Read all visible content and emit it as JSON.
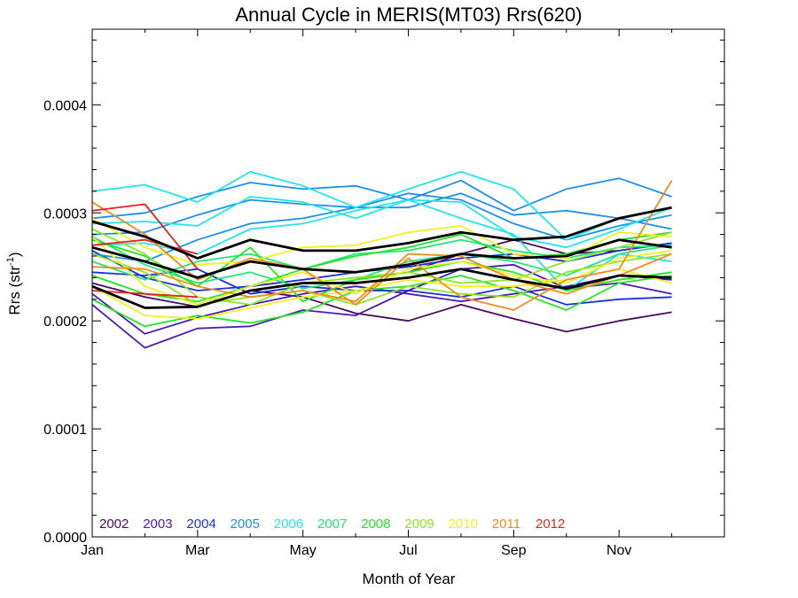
{
  "chart_data": {
    "type": "line",
    "title": "Annual Cycle in MERIS(MT03) Rrs(620)",
    "xlabel": "Month of Year",
    "ylabel": "Rrs (str",
    "ylabel_sup": "-1",
    "ylabel_end": ")",
    "xlim": [
      1,
      13
    ],
    "ylim": [
      0,
      0.00047
    ],
    "x_ticks": [
      1,
      3,
      5,
      7,
      9,
      11
    ],
    "x_tick_labels": [
      "Jan",
      "Mar",
      "May",
      "Jul",
      "Sep",
      "Nov"
    ],
    "y_ticks": [
      0,
      0.0001,
      0.0002,
      0.0003,
      0.0004
    ],
    "y_tick_labels": [
      "0.0000",
      "0.0001",
      "0.0002",
      "0.0003",
      "0.0004"
    ],
    "grid": false,
    "legend_position": "bottom-left",
    "legend": [
      {
        "name": "2002",
        "color": "#4a0a5e"
      },
      {
        "name": "2003",
        "color": "#4b1ab8"
      },
      {
        "name": "2004",
        "color": "#1b2fe6"
      },
      {
        "name": "2005",
        "color": "#1e8ff0"
      },
      {
        "name": "2006",
        "color": "#22e6e6"
      },
      {
        "name": "2007",
        "color": "#22e67a"
      },
      {
        "name": "2008",
        "color": "#22e622"
      },
      {
        "name": "2009",
        "color": "#8ee622"
      },
      {
        "name": "2010",
        "color": "#f0f022"
      },
      {
        "name": "2011",
        "color": "#f08c1a"
      },
      {
        "name": "2012",
        "color": "#e62222"
      }
    ],
    "x": [
      1,
      2,
      3,
      4,
      5,
      6,
      7,
      8,
      9,
      10,
      11,
      12
    ],
    "series": [
      {
        "year": "2002",
        "color": "#4a0a5e",
        "values": [
          0.000235,
          0.000222,
          0.000213,
          0.000228,
          0.000222,
          0.000207,
          0.0002,
          0.000215,
          0.000202,
          0.00019,
          0.0002,
          0.000208
        ]
      },
      {
        "year": "2002",
        "color": "#4a0a5e",
        "values": [
          null,
          null,
          null,
          null,
          null,
          null,
          0.000245,
          0.000262,
          0.000275,
          0.000262,
          0.000265,
          0.000272
        ]
      },
      {
        "year": "2003",
        "color": "#4b1ab8",
        "values": [
          0.000215,
          0.000175,
          0.000193,
          0.000195,
          0.00021,
          0.000205,
          0.000228,
          0.000248,
          0.000252,
          0.00023,
          0.000235,
          0.000225
        ]
      },
      {
        "year": "2003",
        "color": "#4b1ab8",
        "values": [
          0.000225,
          0.000188,
          0.000203,
          0.000215,
          0.000225,
          0.000232,
          0.000225,
          0.000218,
          0.000225,
          0.000232,
          0.000242,
          0.000238
        ]
      },
      {
        "year": "2004",
        "color": "#1b2fe6",
        "values": [
          0.000245,
          0.000242,
          0.000248,
          0.000225,
          0.000232,
          0.000228,
          0.000228,
          0.000222,
          0.000232,
          0.000215,
          0.00022,
          0.000222
        ]
      },
      {
        "year": "2004",
        "color": "#1b2fe6",
        "values": [
          0.000265,
          0.00024,
          0.000228,
          0.000232,
          0.000238,
          0.000245,
          0.00025,
          0.000258,
          0.000262,
          0.000255,
          0.000265,
          0.000272
        ]
      },
      {
        "year": "2005",
        "color": "#1e8ff0",
        "values": [
          0.000295,
          0.0003,
          0.000315,
          0.000328,
          0.000322,
          0.000325,
          0.000312,
          0.00033,
          0.000302,
          0.000322,
          0.000332,
          0.000315
        ]
      },
      {
        "year": "2005",
        "color": "#1e8ff0",
        "values": [
          0.00028,
          0.000282,
          0.000298,
          0.000312,
          0.000308,
          0.000305,
          0.000305,
          0.000318,
          0.000298,
          0.000302,
          0.000295,
          0.000285
        ]
      },
      {
        "year": "2005",
        "color": "#1e8ff0",
        "values": [
          0.000262,
          0.000255,
          0.000275,
          0.00029,
          0.000295,
          0.000305,
          0.000318,
          0.000312,
          0.00029,
          0.000275,
          0.000288,
          0.000298
        ]
      },
      {
        "year": "2006",
        "color": "#22e6e6",
        "values": [
          0.00032,
          0.000326,
          0.00031,
          0.000338,
          0.000325,
          0.000305,
          0.000322,
          0.000338,
          0.000322,
          0.000275,
          0.000295,
          0.000305
        ]
      },
      {
        "year": "2006",
        "color": "#22e6e6",
        "values": [
          0.00029,
          0.000292,
          0.000288,
          0.000315,
          0.00031,
          0.000295,
          0.000312,
          0.00031,
          0.000278,
          0.000268,
          0.000285,
          0.000305
        ]
      },
      {
        "year": "2006",
        "color": "#22e6e6",
        "values": [
          0.00027,
          0.000272,
          0.000262,
          0.000285,
          0.00029,
          0.000302,
          0.000312,
          0.000295,
          0.00028,
          0.000228,
          0.000262,
          0.000255
        ]
      },
      {
        "year": "2007",
        "color": "#22e67a",
        "values": [
          0.000278,
          0.000252,
          0.000235,
          0.000245,
          0.00023,
          0.000238,
          0.000255,
          0.000262,
          0.000255,
          0.000242,
          0.000262,
          0.00027
        ]
      },
      {
        "year": "2007",
        "color": "#22e67a",
        "values": [
          0.000255,
          0.000238,
          0.000255,
          0.000262,
          0.000248,
          0.000262,
          0.000265,
          0.000275,
          0.000265,
          0.000258,
          0.000268,
          0.00027
        ]
      },
      {
        "year": "2008",
        "color": "#22e622",
        "values": [
          0.00022,
          0.000195,
          0.000205,
          0.000198,
          0.000208,
          0.000228,
          0.000232,
          0.000242,
          0.000228,
          0.00021,
          0.000235,
          0.000242
        ]
      },
      {
        "year": "2008",
        "color": "#22e622",
        "values": [
          0.000242,
          0.000225,
          0.000218,
          0.000232,
          0.000248,
          0.00026,
          0.000268,
          0.00028,
          0.000258,
          0.000262,
          0.000275,
          0.000282
        ]
      },
      {
        "year": "2008",
        "color": "#22e622",
        "values": [
          0.000275,
          0.00026,
          0.000232,
          0.000268,
          0.000218,
          0.000238,
          0.000245,
          0.000255,
          0.000245,
          0.000228,
          0.000238,
          0.000245
        ]
      },
      {
        "year": "2009",
        "color": "#8ee622",
        "values": [
          0.000285,
          0.000262,
          0.000222,
          0.000215,
          0.000235,
          0.00024,
          0.000245,
          0.000235,
          0.000238,
          0.000255,
          0.000268,
          0.000282
        ]
      },
      {
        "year": "2009",
        "color": "#8ee622",
        "values": [
          0.000262,
          0.000245,
          0.000215,
          0.000222,
          0.000228,
          0.000215,
          0.000232,
          0.000225,
          0.000222,
          0.000245,
          0.000255,
          0.000262
        ]
      },
      {
        "year": "2010",
        "color": "#f0f022",
        "values": [
          0.000295,
          0.000268,
          0.000252,
          0.000255,
          0.000268,
          0.00027,
          0.000282,
          0.000288,
          0.000262,
          0.000258,
          0.000282,
          0.000278
        ]
      },
      {
        "year": "2010",
        "color": "#f0f022",
        "values": [
          0.000232,
          0.000205,
          0.000202,
          0.000212,
          0.000222,
          0.000228,
          0.000238,
          0.000232,
          0.000232,
          0.000238,
          0.000248,
          0.000235
        ]
      },
      {
        "year": "2010",
        "color": "#f0f022",
        "values": [
          0.000278,
          0.000232,
          0.000215,
          0.000232,
          0.000245,
          0.000225,
          0.000248,
          0.000255,
          0.000242,
          0.000235,
          0.000258,
          0.000265
        ]
      },
      {
        "year": "2011",
        "color": "#f08c1a",
        "values": [
          0.00031,
          0.00028,
          0.000238,
          0.000258,
          0.000248,
          0.000215,
          0.000258,
          0.000222,
          0.00021,
          0.000238,
          0.000248,
          0.00033
        ]
      },
      {
        "year": "2011",
        "color": "#f08c1a",
        "values": [
          0.00025,
          0.000248,
          0.000232,
          0.000222,
          0.000228,
          0.000218,
          0.000262,
          0.00026,
          0.000238,
          0.000225,
          0.000242,
          0.000262
        ]
      },
      {
        "year": "2012",
        "color": "#e62222",
        "values": [
          0.000302,
          0.000308,
          0.000248,
          null,
          null,
          null,
          null,
          null,
          null,
          null,
          null,
          null
        ]
      },
      {
        "year": "2012",
        "color": "#e62222",
        "values": [
          0.00027,
          0.000275,
          0.000262,
          null,
          null,
          null,
          null,
          null,
          null,
          null,
          null,
          null
        ]
      },
      {
        "year": "2012",
        "color": "#e62222",
        "values": [
          0.000228,
          0.000225,
          0.000222,
          null,
          null,
          null,
          null,
          null,
          null,
          null,
          null,
          null
        ]
      },
      {
        "year": "",
        "color": "#000000",
        "values": [
          0.000292,
          0.000278,
          0.000258,
          0.000275,
          0.000265,
          0.000265,
          0.000272,
          0.000282,
          0.000275,
          0.000278,
          0.000295,
          0.000305
        ]
      },
      {
        "year": "",
        "color": "#000000",
        "values": [
          0.000268,
          0.000255,
          0.00024,
          0.000255,
          0.000248,
          0.000245,
          0.000252,
          0.000262,
          0.000258,
          0.00026,
          0.000275,
          0.000268
        ]
      },
      {
        "year": "",
        "color": "#000000",
        "values": [
          0.000232,
          0.000212,
          0.000213,
          0.000228,
          0.000235,
          0.000235,
          0.00024,
          0.000248,
          0.000238,
          0.00023,
          0.000242,
          0.00024
        ]
      }
    ]
  }
}
